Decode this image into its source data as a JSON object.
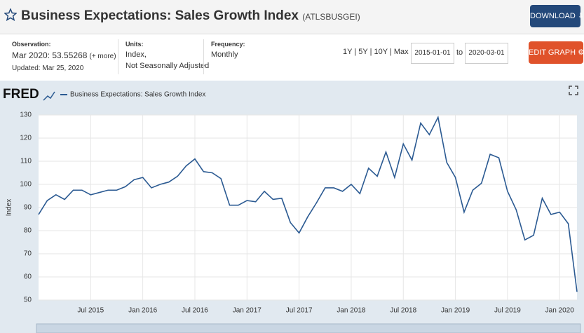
{
  "header": {
    "title": "Business Expectations: Sales Growth Index",
    "code": "(ATLSBUSGEI)",
    "download": "DOWNLOAD",
    "edit": "EDIT GRAPH"
  },
  "info": {
    "observation_label": "Observation:",
    "observation_value": "Mar 2020: 53.55268",
    "more": "(+ more)",
    "updated": "Updated: Mar 25, 2020",
    "units_label": "Units:",
    "units": [
      "Index,",
      "Not Seasonally Adjusted"
    ],
    "frequency_label": "Frequency:",
    "frequency": "Monthly",
    "ranges": [
      "1Y",
      "5Y",
      "10Y",
      "Max"
    ],
    "start": "2015-01-01",
    "to": "to",
    "end": "2020-03-01"
  },
  "chart_data": {
    "type": "line",
    "logo": "FRED",
    "ylabel": "Index",
    "x": [
      "2015-01",
      "2015-02",
      "2015-03",
      "2015-04",
      "2015-05",
      "2015-06",
      "2015-07",
      "2015-08",
      "2015-09",
      "2015-10",
      "2015-11",
      "2015-12",
      "2016-01",
      "2016-02",
      "2016-03",
      "2016-04",
      "2016-05",
      "2016-06",
      "2016-07",
      "2016-08",
      "2016-09",
      "2016-10",
      "2016-11",
      "2016-12",
      "2017-01",
      "2017-02",
      "2017-03",
      "2017-04",
      "2017-05",
      "2017-06",
      "2017-07",
      "2017-08",
      "2017-09",
      "2017-10",
      "2017-11",
      "2017-12",
      "2018-01",
      "2018-02",
      "2018-03",
      "2018-04",
      "2018-05",
      "2018-06",
      "2018-07",
      "2018-08",
      "2018-09",
      "2018-10",
      "2018-11",
      "2018-12",
      "2019-01",
      "2019-02",
      "2019-03",
      "2019-04",
      "2019-05",
      "2019-06",
      "2019-07",
      "2019-08",
      "2019-09",
      "2019-10",
      "2019-11",
      "2019-12",
      "2020-01",
      "2020-02",
      "2020-03"
    ],
    "series": [
      {
        "name": "Business Expectations: Sales Growth Index",
        "color": "#2b5a92",
        "values": [
          87,
          93,
          95.5,
          93.5,
          97.5,
          97.5,
          95.5,
          96.5,
          97.5,
          97.5,
          99,
          102,
          103,
          98.5,
          100,
          101,
          103.5,
          108,
          111,
          105.5,
          105,
          102.5,
          91,
          91,
          93,
          92.5,
          97,
          93.5,
          94,
          83.5,
          79,
          86,
          92,
          98.5,
          98.5,
          97,
          100,
          96,
          107,
          103.5,
          114,
          103,
          117.5,
          110.5,
          126.5,
          121.5,
          129,
          109.5,
          103,
          88,
          97.5,
          100.5,
          113,
          111.5,
          97,
          89,
          76,
          78,
          94,
          87,
          88,
          83,
          53.55268
        ]
      }
    ],
    "xlim": [
      "2015-01",
      "2020-03"
    ],
    "xticks": [
      {
        "value": "2015-07",
        "label": "Jul 2015"
      },
      {
        "value": "2016-01",
        "label": "Jan 2016"
      },
      {
        "value": "2016-07",
        "label": "Jul 2016"
      },
      {
        "value": "2017-01",
        "label": "Jan 2017"
      },
      {
        "value": "2017-07",
        "label": "Jul 2017"
      },
      {
        "value": "2018-01",
        "label": "Jan 2018"
      },
      {
        "value": "2018-07",
        "label": "Jul 2018"
      },
      {
        "value": "2019-01",
        "label": "Jan 2019"
      },
      {
        "value": "2019-07",
        "label": "Jul 2019"
      },
      {
        "value": "2020-01",
        "label": "Jan 2020"
      }
    ],
    "ylim": [
      50,
      130
    ],
    "yticks": [
      50,
      60,
      70,
      80,
      90,
      100,
      110,
      120,
      130
    ],
    "grid": true
  }
}
